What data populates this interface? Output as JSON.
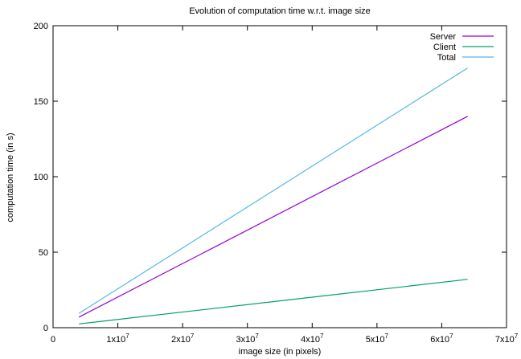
{
  "chart_data": {
    "type": "line",
    "title": "Evolution of computation time w.r.t. image size",
    "xlabel": "image size (in pixels)",
    "ylabel": "computation time (in s)",
    "xlim": [
      0,
      70000000
    ],
    "ylim": [
      0,
      200
    ],
    "x_ticks": [
      {
        "value": 0,
        "label": "0"
      },
      {
        "value": 10000000,
        "label": "1x10",
        "exp": "7"
      },
      {
        "value": 20000000,
        "label": "2x10",
        "exp": "7"
      },
      {
        "value": 30000000,
        "label": "3x10",
        "exp": "7"
      },
      {
        "value": 40000000,
        "label": "4x10",
        "exp": "7"
      },
      {
        "value": 50000000,
        "label": "5x10",
        "exp": "7"
      },
      {
        "value": 60000000,
        "label": "6x10",
        "exp": "7"
      },
      {
        "value": 70000000,
        "label": "7x10",
        "exp": "7"
      }
    ],
    "y_ticks": [
      0,
      50,
      100,
      150,
      200
    ],
    "grid": false,
    "legend_position": "top-right",
    "series": [
      {
        "name": "Server",
        "color": "#9400d3",
        "x": [
          4000000,
          64000000
        ],
        "y": [
          7,
          140
        ]
      },
      {
        "name": "Client",
        "color": "#009e73",
        "x": [
          4000000,
          64000000
        ],
        "y": [
          2.5,
          32
        ]
      },
      {
        "name": "Total",
        "color": "#56b4e9",
        "x": [
          4000000,
          64000000
        ],
        "y": [
          9.5,
          172
        ]
      }
    ]
  }
}
